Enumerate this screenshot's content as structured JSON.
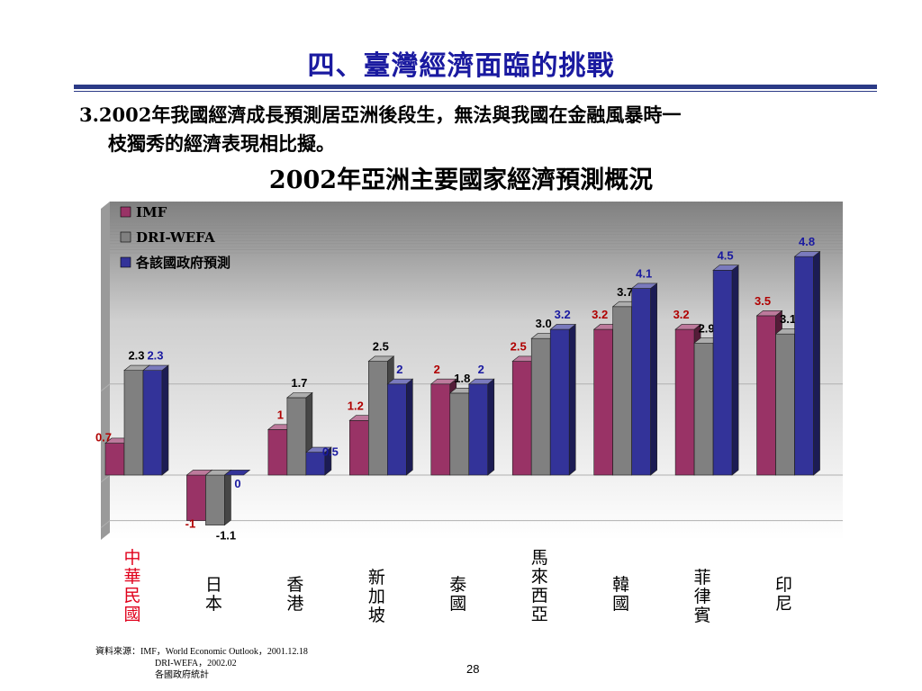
{
  "page": {
    "title": "四、臺灣經濟面臨的挑戰",
    "body_line1": "3.2002年我國經濟成長預測居亞洲後段生，無法與我國在金融風暴時一",
    "body_line2": "枝獨秀的經濟表現相比擬。",
    "source_line1": "資料來源：IMF，World Economic Outlook，2001.12.18",
    "source_line2": "DRI-WEFA，2002.02",
    "source_line3": "各國政府統計",
    "page_number": "28"
  },
  "chart_data": {
    "type": "bar",
    "title": "2002年亞洲主要國家經濟預測概況",
    "categories": [
      "中華民國",
      "日本",
      "香港",
      "新加坡",
      "泰國",
      "馬來西亞",
      "韓國",
      "菲律賓",
      "印尼"
    ],
    "highlight_category_color": "#e0001b",
    "series": [
      {
        "name": "IMF",
        "color": "#993366",
        "values": [
          0.7,
          -1,
          1,
          1.2,
          2,
          2.5,
          3.2,
          3.2,
          3.5
        ],
        "labels": [
          "0.7",
          "-1",
          "1",
          "1.2",
          "2",
          "2.5",
          "3.2",
          "3.2",
          "3.5"
        ],
        "label_color": "#b00000"
      },
      {
        "name": "DRI-WEFA",
        "color": "#808080",
        "values": [
          2.3,
          -1.1,
          1.7,
          2.5,
          1.8,
          3.0,
          3.7,
          2.9,
          3.1
        ],
        "labels": [
          "2.3",
          "-1.1",
          "1.7",
          "2.5",
          "1.8",
          "3.0",
          "3.7",
          "2.9",
          "3.1"
        ],
        "label_color": "#000000"
      },
      {
        "name": "各該國政府預測",
        "color": "#333399",
        "values": [
          2.3,
          0,
          0.5,
          2,
          2,
          3.2,
          4.1,
          4.5,
          4.8
        ],
        "labels": [
          "2.3",
          "0",
          "0.5",
          "2",
          "2",
          "3.2",
          "4.1",
          "4.5",
          "4.8"
        ],
        "label_color": "#1a1aa0"
      }
    ],
    "ylim": [
      -1.5,
      5.5
    ],
    "gridlines": [
      -1,
      0,
      2
    ],
    "grid": true,
    "legend_position": "top-left"
  }
}
